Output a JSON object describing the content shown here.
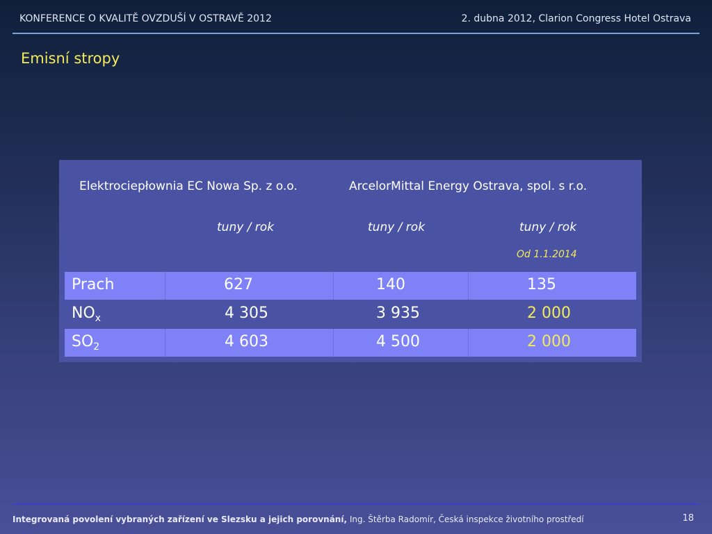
{
  "header": {
    "conference": "KONFERENCE O KVALITĚ OVZDUŠÍ V OSTRAVĚ 2012",
    "date_venue": "2. dubna 2012,  Clarion Congress Hotel Ostrava"
  },
  "slide": {
    "title": "Emisní stropy"
  },
  "table": {
    "companies": [
      "Elektrociepłownia EC Nowa Sp. z o.o.",
      "ArcelorMittal Energy Ostrava, spol. s r.o."
    ],
    "units": [
      "tuny / rok",
      "tuny / rok",
      "tuny / rok"
    ],
    "note": "Od 1.1.2014",
    "rows": [
      {
        "label": "Prach",
        "sub": "",
        "values": [
          "627",
          "140",
          "135"
        ]
      },
      {
        "label": "NO",
        "sub": "x",
        "values": [
          "4 305",
          "3 935",
          "2 000"
        ]
      },
      {
        "label": "SO",
        "sub": "2",
        "values": [
          "4 603",
          "4 500",
          "2 000"
        ]
      }
    ]
  },
  "footer": {
    "bold_text": "Integrovaná povolení vybraných zařízení ve Slezsku a jejich porovnání,",
    "author": "Ing. Štěrba  Radomír, Česká inspekce životního prostředí",
    "page": "18"
  },
  "colors": {
    "accent_yellow": "#f3ea5a",
    "row_highlight": "#7e82f6",
    "panel": "#4a53a3"
  }
}
